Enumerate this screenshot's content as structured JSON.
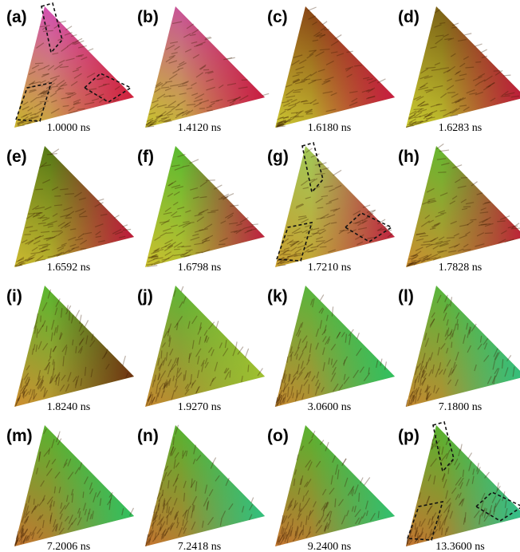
{
  "panels": [
    {
      "label": "(a)",
      "time": "1.0000 ns"
    },
    {
      "label": "(b)",
      "time": "1.4120 ns"
    },
    {
      "label": "(c)",
      "time": "1.6180 ns"
    },
    {
      "label": "(d)",
      "time": "1.6283 ns"
    },
    {
      "label": "(e)",
      "time": "1.6592 ns"
    },
    {
      "label": "(f)",
      "time": "1.6798 ns"
    },
    {
      "label": "(g)",
      "time": "1.7210 ns"
    },
    {
      "label": "(h)",
      "time": "1.7828 ns"
    },
    {
      "label": "(i)",
      "time": "1.8240 ns"
    },
    {
      "label": "(j)",
      "time": "1.9270 ns"
    },
    {
      "label": "(k)",
      "time": "3.0600 ns"
    },
    {
      "label": "(l)",
      "time": "7.1800 ns"
    },
    {
      "label": "(m)",
      "time": "7.2006 ns"
    },
    {
      "label": "(n)",
      "time": "7.2418 ns"
    },
    {
      "label": "(o)",
      "time": "9.2400 ns"
    },
    {
      "label": "(p)",
      "time": "13.3600 ns"
    }
  ]
}
